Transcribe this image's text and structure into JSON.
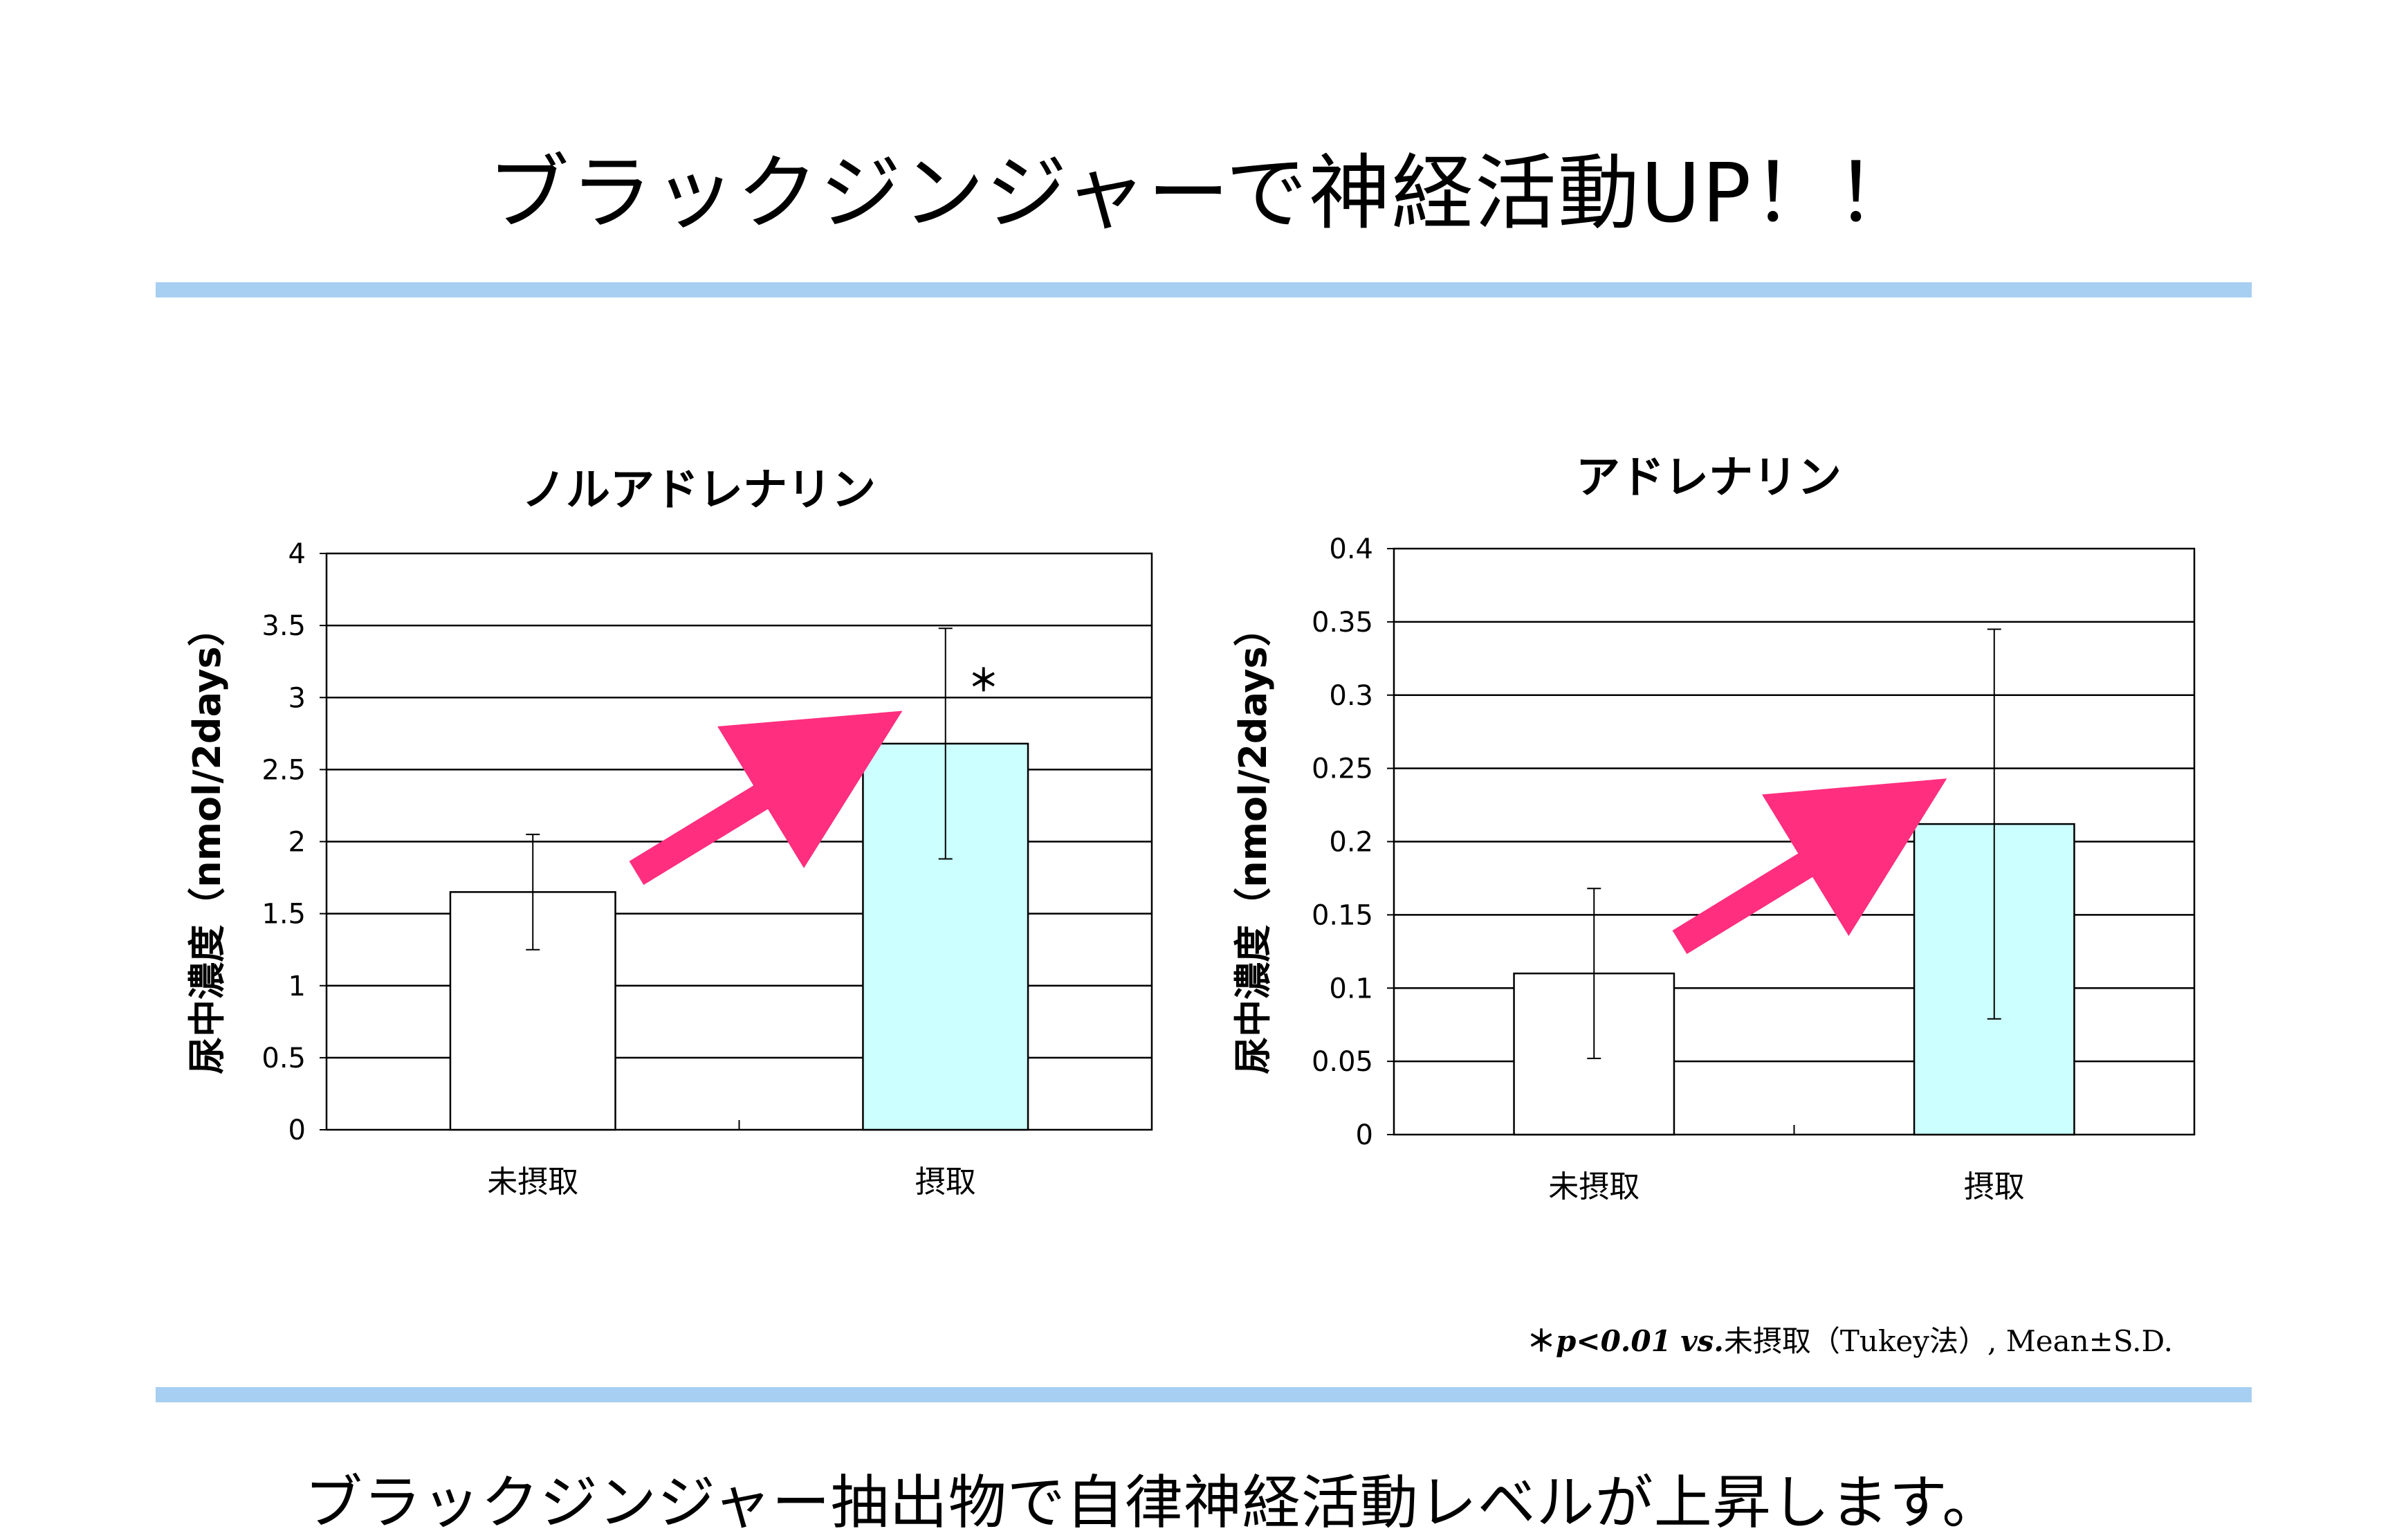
{
  "header": {
    "title": "ブラックジンジャーで神経活動UP！！"
  },
  "chart_data": [
    {
      "type": "bar",
      "title": "ノルアドレナリン",
      "ylabel": "尿中濃度（nmol/2days）",
      "xlabel": "",
      "categories": [
        "未摂取",
        "摂取"
      ],
      "values": [
        1.65,
        2.68
      ],
      "error": [
        0.4,
        0.8
      ],
      "significance": [
        "",
        "＊"
      ],
      "ylim": [
        0,
        4
      ],
      "yticks": [
        0,
        0.5,
        1,
        1.5,
        2,
        2.5,
        3,
        3.5,
        4
      ],
      "ytick_labels": [
        "0",
        "0.5",
        "1",
        "1.5",
        "2",
        "2.5",
        "3",
        "3.5",
        "4"
      ],
      "grid": true,
      "bar_colors": [
        "#ffffff",
        "#ccffff"
      ],
      "arrow_color": "#ff2e7e"
    },
    {
      "type": "bar",
      "title": "アドレナリン",
      "ylabel": "尿中濃度（nmol/2days）",
      "xlabel": "",
      "categories": [
        "未摂取",
        "摂取"
      ],
      "values": [
        0.11,
        0.212
      ],
      "error": [
        0.058,
        0.133
      ],
      "significance": [
        "",
        ""
      ],
      "ylim": [
        0,
        0.4
      ],
      "yticks": [
        0,
        0.05,
        0.1,
        0.15,
        0.2,
        0.25,
        0.3,
        0.35,
        0.4
      ],
      "ytick_labels": [
        "0",
        "0.05",
        "0.1",
        "0.15",
        "0.2",
        "0.25",
        "0.3",
        "0.35",
        "0.4"
      ],
      "grid": true,
      "bar_colors": [
        "#ffffff",
        "#ccffff"
      ],
      "arrow_color": "#ff2e7e"
    }
  ],
  "footnote": {
    "star": "＊",
    "p_value": "p<0.01",
    "vs": "vs.",
    "text": "未摂取（Tukey法）, Mean±S.D."
  },
  "summary": "ブラックジンジャー抽出物で自律神経活動レベルが上昇します。",
  "colors": {
    "rule": "#a7cff1",
    "bar_intake": "#ccffff",
    "arrow": "#ff2e7e"
  }
}
